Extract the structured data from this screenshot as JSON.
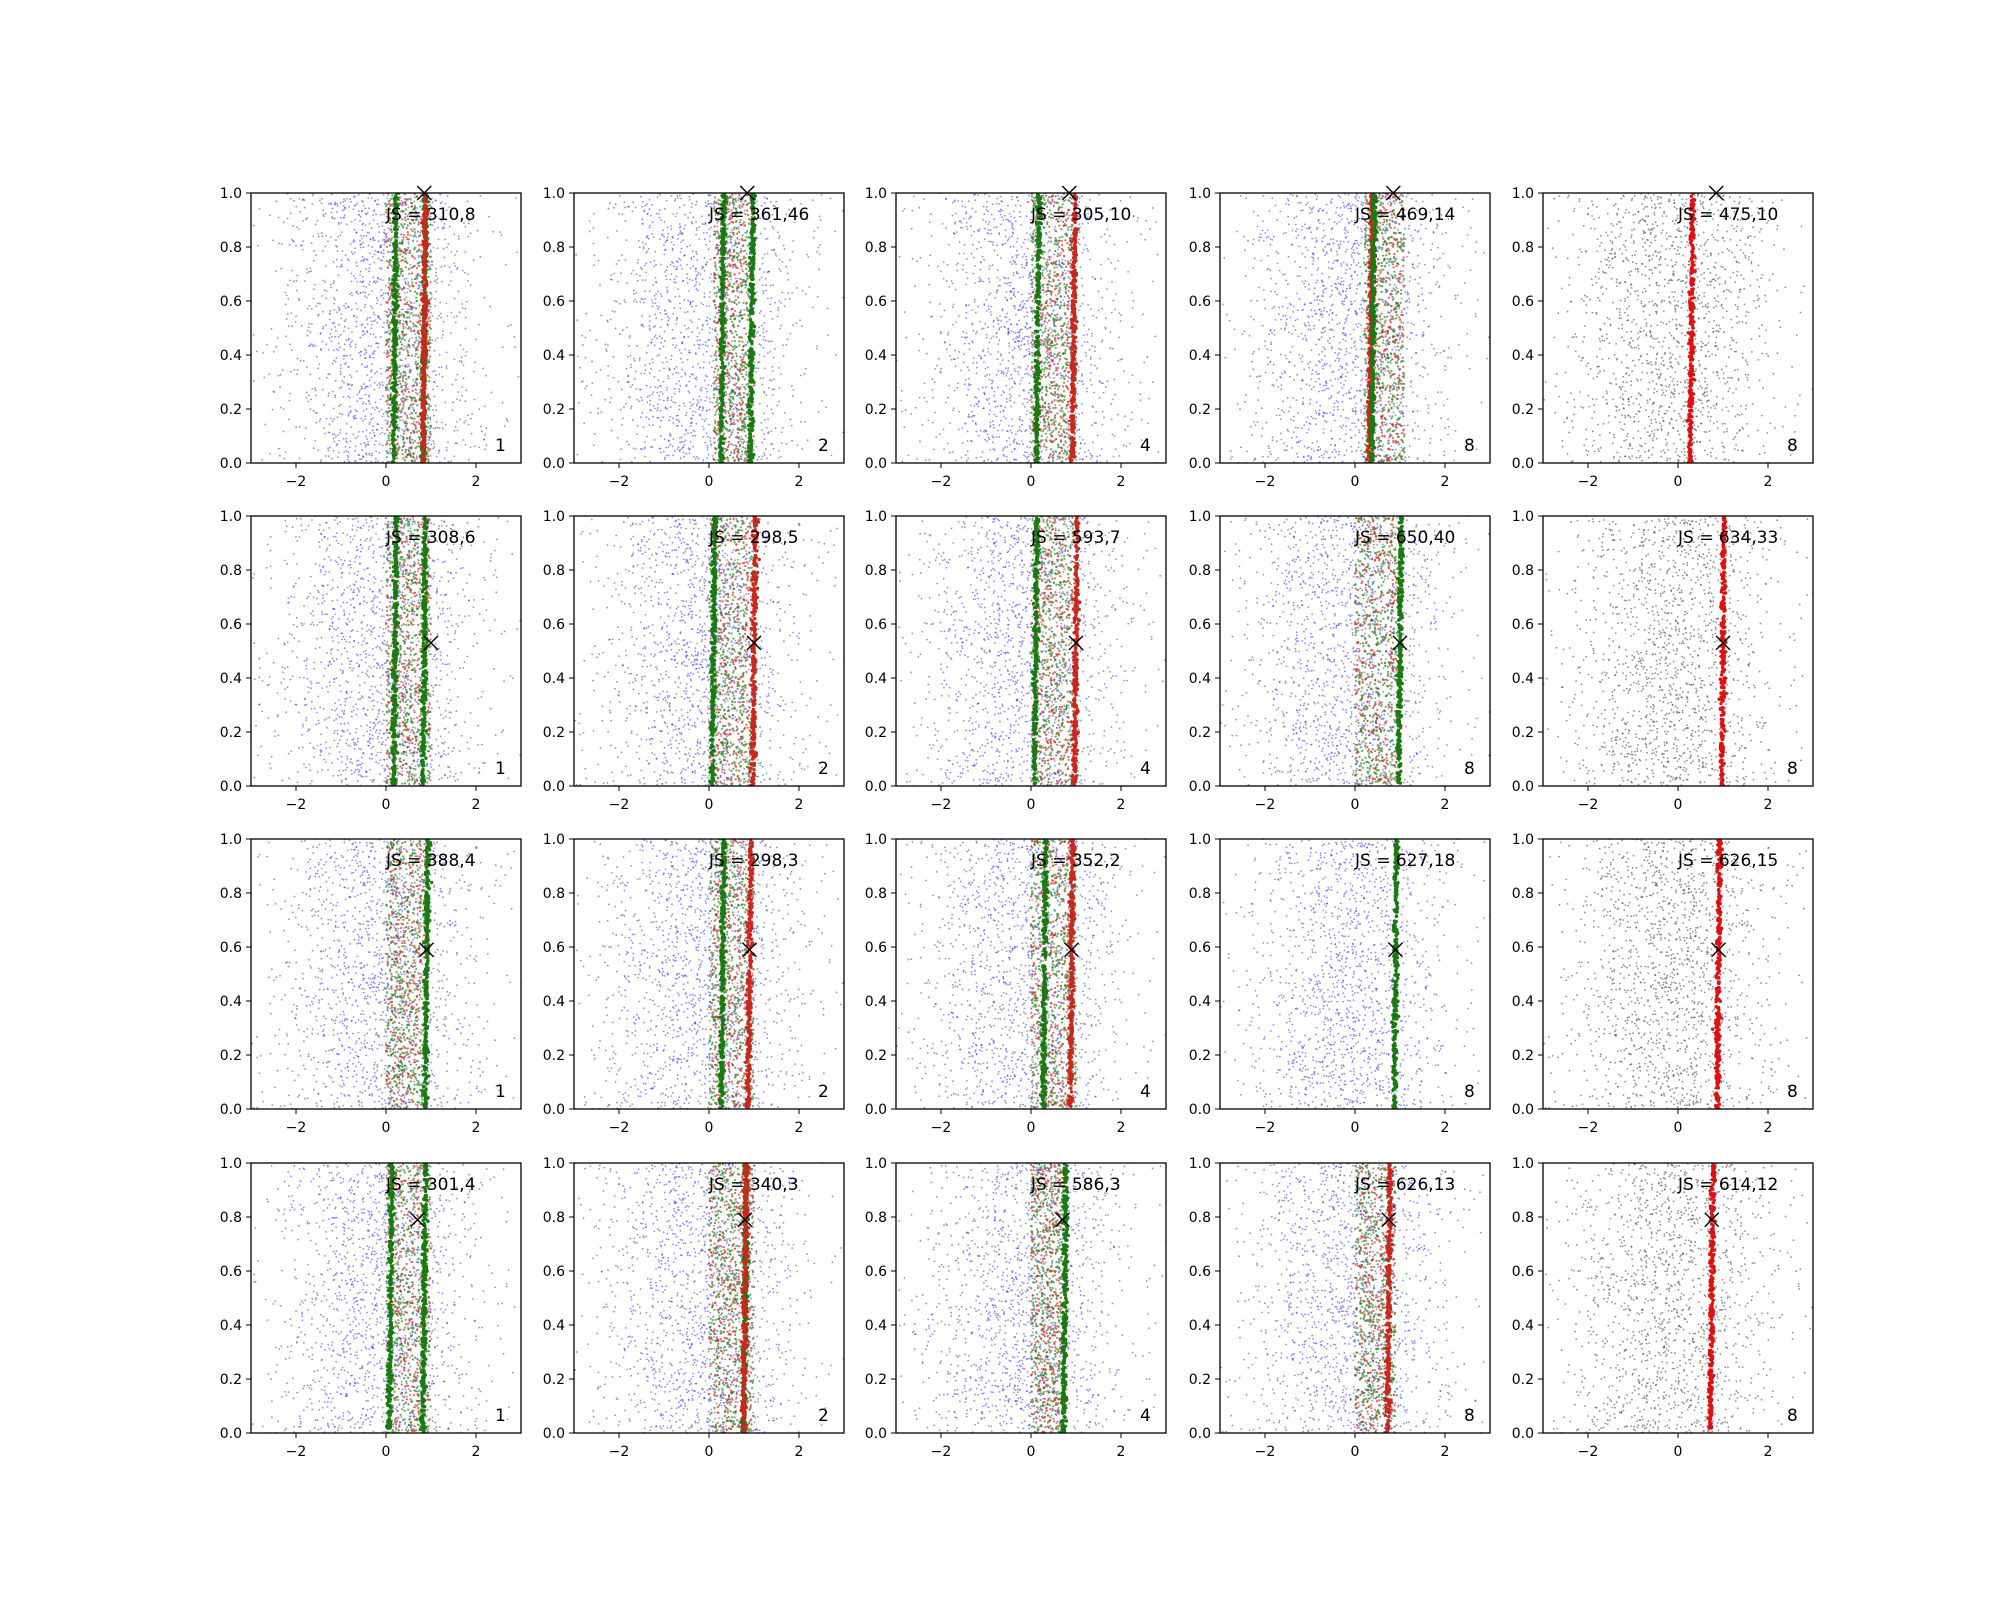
{
  "figure": {
    "grid": "4x5",
    "axes": {
      "xlim": [
        -3,
        3
      ],
      "ylim": [
        0,
        1
      ],
      "xticks": [
        -2,
        0,
        2
      ],
      "yticks": [
        0.0,
        0.2,
        0.4,
        0.6,
        0.8,
        1.0
      ]
    }
  },
  "chart_data": {
    "type": "scatter",
    "panels": [
      {
        "row": 0,
        "col": 0,
        "label": "JS = 310,8",
        "number": "1",
        "marker": [
          0.85,
          1.0
        ],
        "lines": [
          {
            "color": "#1a7a12",
            "x": 0.2
          },
          {
            "color": "#1a7a12",
            "x": 0.85
          },
          {
            "color": "#c8281e",
            "x": 0.85
          }
        ],
        "band": [
          0.0,
          1.0
        ]
      },
      {
        "row": 0,
        "col": 1,
        "label": "JS = 361,46",
        "number": "2",
        "marker": [
          0.85,
          1.0
        ],
        "lines": [
          {
            "color": "#1a7a12",
            "x": 0.3
          },
          {
            "color": "#1a7a12",
            "x": 0.95
          }
        ],
        "band": [
          0.1,
          1.0
        ]
      },
      {
        "row": 0,
        "col": 2,
        "label": "JS = 305,10",
        "number": "4",
        "marker": [
          0.85,
          1.0
        ],
        "lines": [
          {
            "color": "#1a7a12",
            "x": 0.15
          },
          {
            "color": "#c8281e",
            "x": 0.95
          }
        ],
        "band": [
          0.0,
          1.0
        ]
      },
      {
        "row": 0,
        "col": 3,
        "label": "JS = 469,14",
        "number": "8",
        "marker": [
          0.85,
          1.0
        ],
        "lines": [
          {
            "color": "#c8281e",
            "x": 0.35
          },
          {
            "color": "#1a7a12",
            "x": 0.4
          }
        ],
        "band": [
          0.2,
          1.1
        ]
      },
      {
        "row": 0,
        "col": 4,
        "label": "JS = 475,10",
        "number": "8",
        "marker": [
          0.85,
          1.0
        ],
        "lines": [
          {
            "color": "#e01010",
            "x": 0.3
          }
        ],
        "band": null
      },
      {
        "row": 1,
        "col": 0,
        "label": "JS = 308,6",
        "number": "1",
        "marker": [
          1.0,
          0.53
        ],
        "lines": [
          {
            "color": "#1a7a12",
            "x": 0.2
          },
          {
            "color": "#1a7a12",
            "x": 0.85
          }
        ],
        "band": [
          0.0,
          1.0
        ]
      },
      {
        "row": 1,
        "col": 1,
        "label": "JS = 298,5",
        "number": "2",
        "marker": [
          1.0,
          0.53
        ],
        "lines": [
          {
            "color": "#1a7a12",
            "x": 0.1
          },
          {
            "color": "#c8281e",
            "x": 1.0
          }
        ],
        "band": [
          0.0,
          1.0
        ]
      },
      {
        "row": 1,
        "col": 2,
        "label": "JS = 593,7",
        "number": "4",
        "marker": [
          1.0,
          0.53
        ],
        "lines": [
          {
            "color": "#1a7a12",
            "x": 0.1
          },
          {
            "color": "#c8281e",
            "x": 1.0
          }
        ],
        "band": [
          0.0,
          1.0
        ]
      },
      {
        "row": 1,
        "col": 3,
        "label": "JS = 650,40",
        "number": "8",
        "marker": [
          1.0,
          0.53
        ],
        "lines": [
          {
            "color": "#1a7a12",
            "x": 1.0
          }
        ],
        "band": [
          0.0,
          1.0
        ]
      },
      {
        "row": 1,
        "col": 4,
        "label": "JS = 634,33",
        "number": "8",
        "marker": [
          1.0,
          0.53
        ],
        "lines": [
          {
            "color": "#e01010",
            "x": 1.0
          }
        ],
        "band": null
      },
      {
        "row": 2,
        "col": 0,
        "label": "JS = 388,4",
        "number": "1",
        "marker": [
          0.9,
          0.59
        ],
        "lines": [
          {
            "color": "#1a7a12",
            "x": 0.9
          }
        ],
        "band": [
          0.0,
          0.9
        ]
      },
      {
        "row": 2,
        "col": 1,
        "label": "JS = 298,3",
        "number": "2",
        "marker": [
          0.9,
          0.59
        ],
        "lines": [
          {
            "color": "#1a7a12",
            "x": 0.3
          },
          {
            "color": "#c8281e",
            "x": 0.9
          }
        ],
        "band": [
          0.0,
          1.0
        ]
      },
      {
        "row": 2,
        "col": 2,
        "label": "JS = 352,2",
        "number": "4",
        "marker": [
          0.9,
          0.59
        ],
        "lines": [
          {
            "color": "#1a7a12",
            "x": 0.3
          },
          {
            "color": "#c8281e",
            "x": 0.9
          }
        ],
        "band": [
          0.0,
          1.0
        ]
      },
      {
        "row": 2,
        "col": 3,
        "label": "JS = 627,18",
        "number": "8",
        "marker": [
          0.9,
          0.59
        ],
        "lines": [
          {
            "color": "#1a7a12",
            "x": 0.9
          }
        ],
        "band": null
      },
      {
        "row": 2,
        "col": 4,
        "label": "JS = 626,15",
        "number": "8",
        "marker": [
          0.9,
          0.59
        ],
        "lines": [
          {
            "color": "#e01010",
            "x": 0.9
          }
        ],
        "band": null
      },
      {
        "row": 3,
        "col": 0,
        "label": "JS = 301,4",
        "number": "1",
        "marker": [
          0.7,
          0.79
        ],
        "lines": [
          {
            "color": "#1a7a12",
            "x": 0.1
          },
          {
            "color": "#1a7a12",
            "x": 0.85
          }
        ],
        "band": [
          0.0,
          1.0
        ]
      },
      {
        "row": 3,
        "col": 1,
        "label": "JS = 340,3",
        "number": "2",
        "marker": [
          0.8,
          0.79
        ],
        "lines": [
          {
            "color": "#1a7a12",
            "x": 0.8
          },
          {
            "color": "#c8281e",
            "x": 0.8
          }
        ],
        "band": [
          0.0,
          1.0
        ]
      },
      {
        "row": 3,
        "col": 2,
        "label": "JS = 586,3",
        "number": "4",
        "marker": [
          0.7,
          0.79
        ],
        "lines": [
          {
            "color": "#1a7a12",
            "x": 0.75
          }
        ],
        "band": [
          0.0,
          0.75
        ]
      },
      {
        "row": 3,
        "col": 3,
        "label": "JS = 626,13",
        "number": "8",
        "marker": [
          0.75,
          0.79
        ],
        "lines": [
          {
            "color": "#c8281e",
            "x": 0.75
          }
        ],
        "band": [
          0.0,
          0.9
        ]
      },
      {
        "row": 3,
        "col": 4,
        "label": "JS = 614,12",
        "number": "8",
        "marker": [
          0.75,
          0.79
        ],
        "lines": [
          {
            "color": "#e01010",
            "x": 0.75
          }
        ],
        "band": null
      }
    ]
  }
}
